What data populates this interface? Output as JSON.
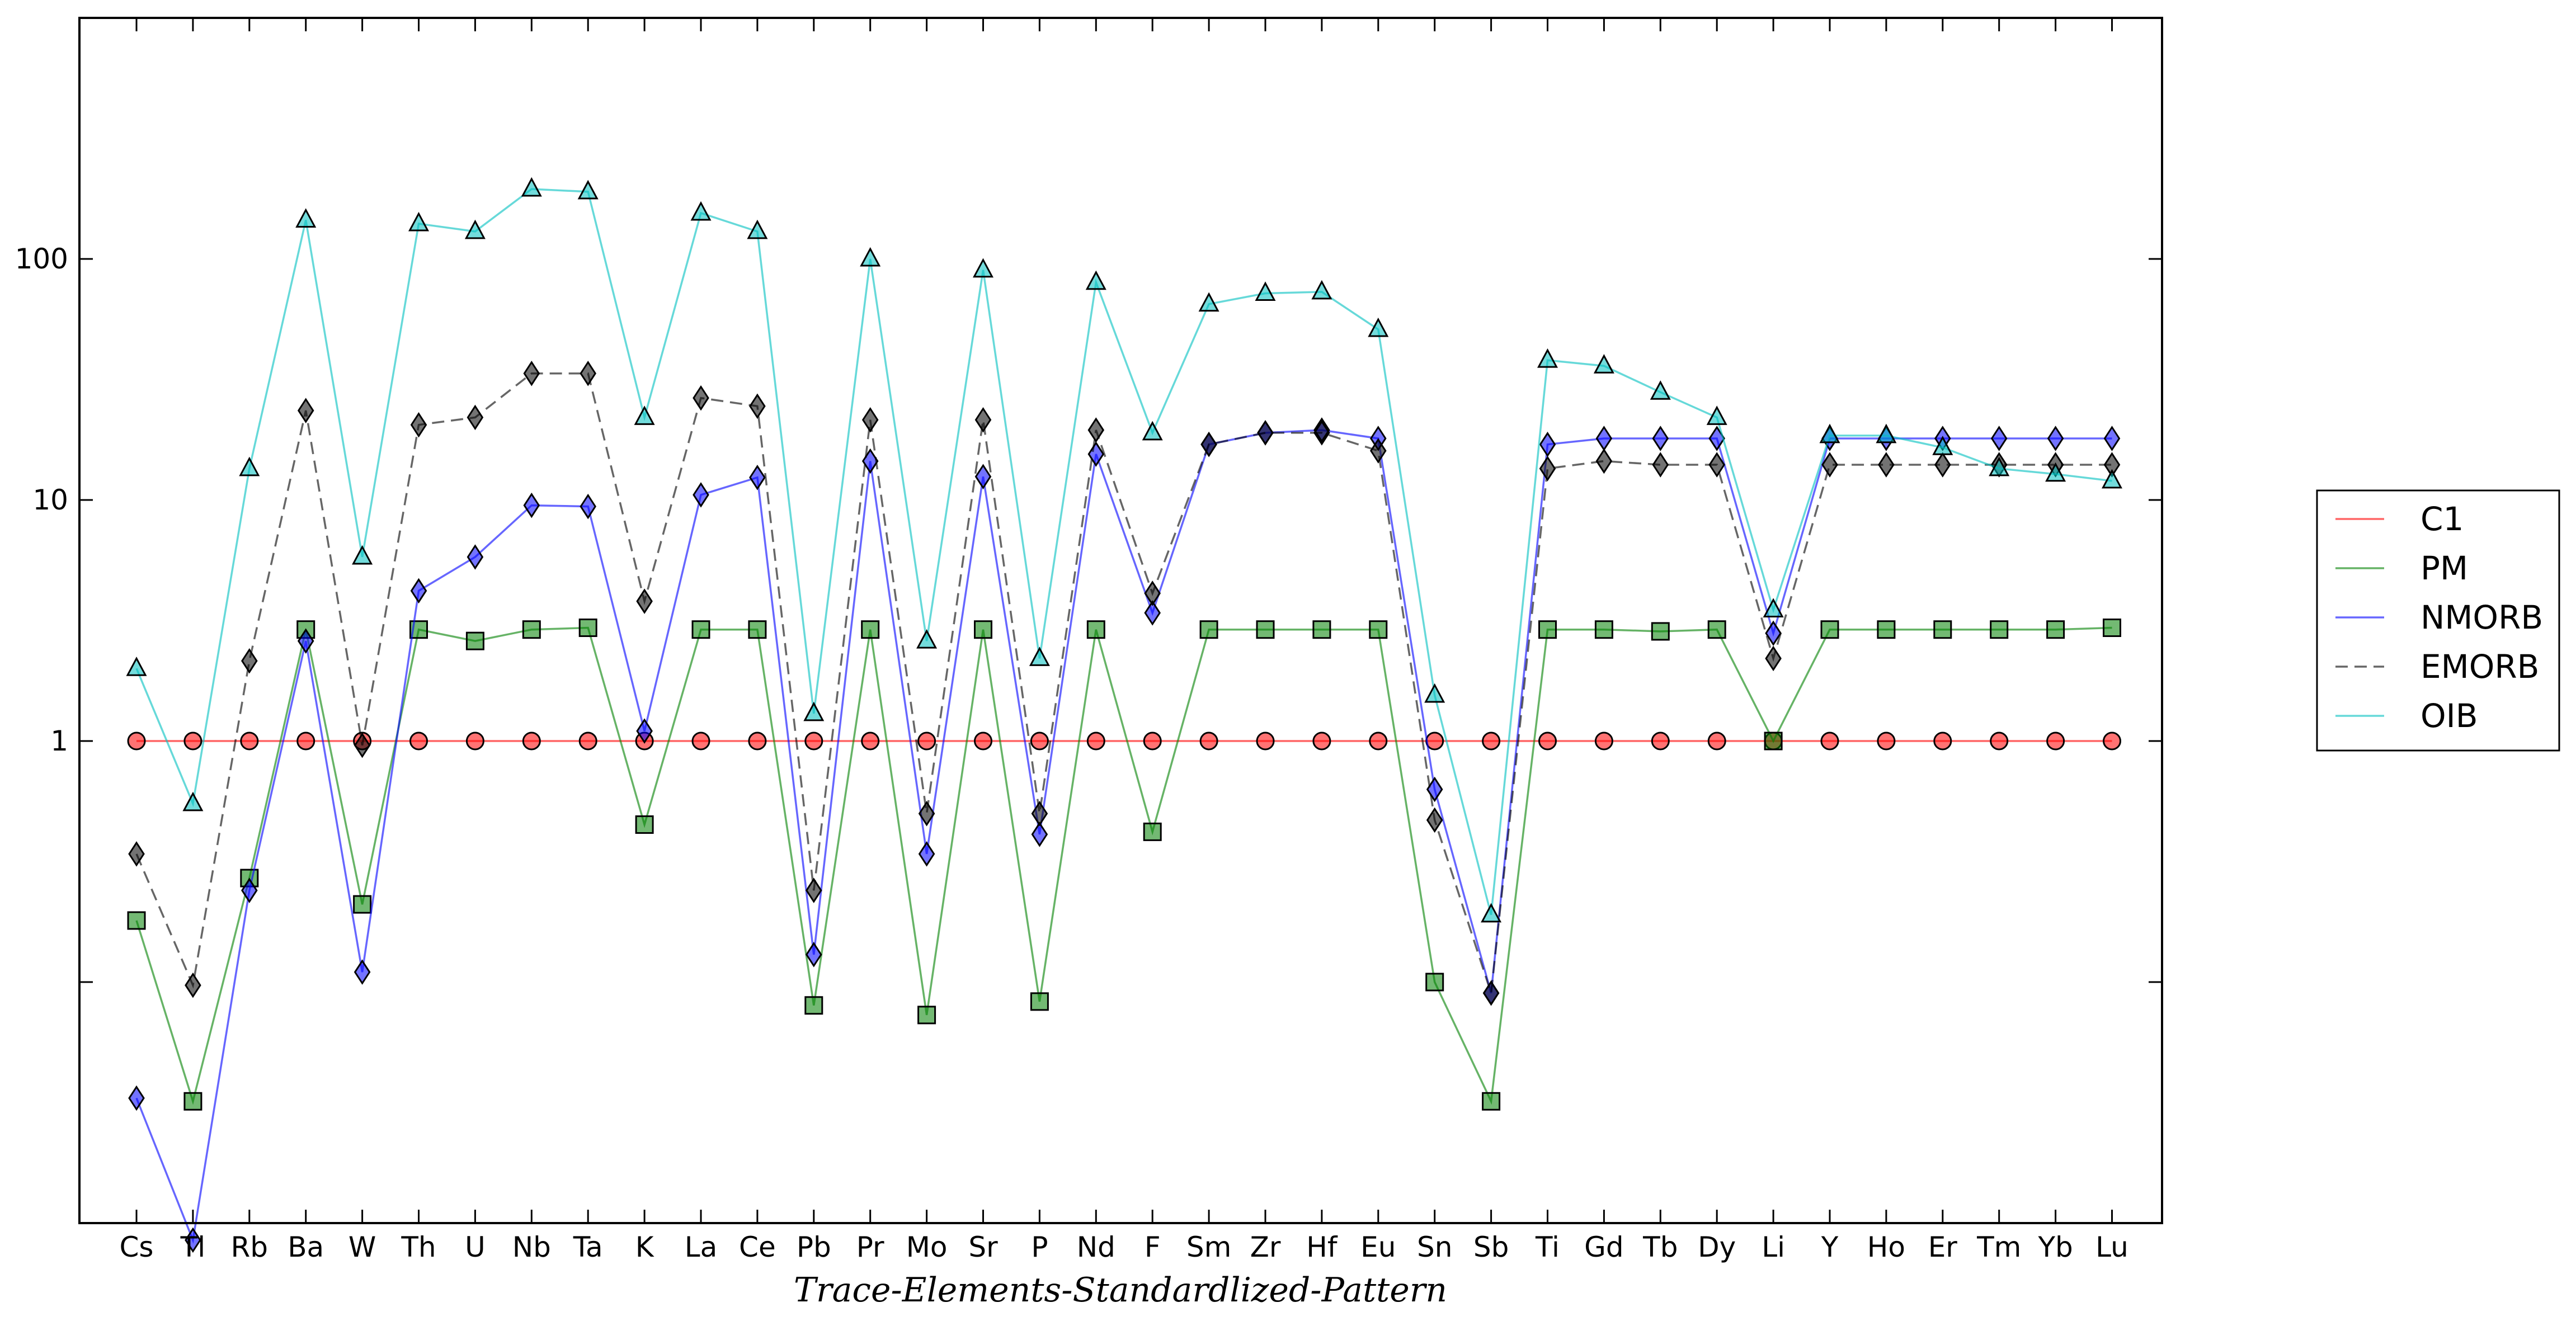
{
  "chart_data": {
    "type": "line",
    "xlabel": "Trace-Elements-Standardlized-Pattern",
    "ylabel": "",
    "yscale": "log",
    "ylim": [
      0.01,
      1000
    ],
    "yticks": [
      {
        "value": 1,
        "label": "1"
      },
      {
        "value": 10,
        "label": "10"
      },
      {
        "value": 100,
        "label": "100"
      },
      {
        "value": 0.1,
        "label": ""
      }
    ],
    "grid": false,
    "legend_position": "outside right",
    "categories": [
      "Cs",
      "Tl",
      "Rb",
      "Ba",
      "W",
      "Th",
      "U",
      "Nb",
      "Ta",
      "K",
      "La",
      "Ce",
      "Pb",
      "Pr",
      "Mo",
      "Sr",
      "P",
      "Nd",
      "F",
      "Sm",
      "Zr",
      "Hf",
      "Eu",
      "Sn",
      "Sb",
      "Ti",
      "Gd",
      "Tb",
      "Dy",
      "Li",
      "Y",
      "Ho",
      "Er",
      "Tm",
      "Yb",
      "Lu"
    ],
    "series": [
      {
        "name": "C1",
        "color": "#ff0000",
        "marker": "circle",
        "dash": "solid",
        "values": [
          1,
          1,
          1,
          1,
          1,
          1,
          1,
          1,
          1,
          1,
          1,
          1,
          1,
          1,
          1,
          1,
          1,
          1,
          1,
          1,
          1,
          1,
          1,
          1,
          1,
          1,
          1,
          1,
          1,
          1,
          1,
          1,
          1,
          1,
          1,
          1
        ]
      },
      {
        "name": "PM",
        "color": "#008000",
        "marker": "square",
        "dash": "solid",
        "values": [
          0.18,
          0.032,
          0.27,
          2.9,
          0.21,
          2.9,
          2.6,
          2.9,
          2.95,
          0.45,
          2.9,
          2.9,
          0.08,
          2.9,
          0.073,
          2.9,
          0.083,
          2.9,
          0.42,
          2.9,
          2.9,
          2.9,
          2.9,
          0.1,
          0.032,
          2.9,
          2.9,
          2.85,
          2.9,
          1.0,
          2.9,
          2.9,
          2.9,
          2.9,
          2.9,
          2.95
        ]
      },
      {
        "name": "NMORB",
        "color": "#0000ff",
        "marker": "diamond",
        "dash": "solid",
        "values": [
          0.033,
          0.0085,
          0.24,
          2.6,
          0.11,
          4.2,
          5.8,
          9.5,
          9.4,
          1.1,
          10.5,
          12.4,
          0.13,
          14.5,
          0.34,
          12.5,
          0.41,
          15.5,
          3.4,
          17.0,
          19.0,
          19.5,
          18.0,
          0.63,
          0.09,
          17.0,
          18.0,
          18.0,
          18.0,
          2.8,
          18.0,
          18.0,
          18.0,
          18.0,
          18.0,
          18.0
        ]
      },
      {
        "name": "EMORB",
        "color": "#000000",
        "marker": "diamond",
        "dash": "dashed",
        "values": [
          0.34,
          0.097,
          2.15,
          23.5,
          0.96,
          20.5,
          22.0,
          33.5,
          33.5,
          3.8,
          26.5,
          24.5,
          0.24,
          21.5,
          0.5,
          21.5,
          0.5,
          19.5,
          4.1,
          17.0,
          19.0,
          19.0,
          16.0,
          0.47,
          0.09,
          13.5,
          14.5,
          14.0,
          14.0,
          2.2,
          14.0,
          14.0,
          14.0,
          14.0,
          14.0,
          14.0
        ]
      },
      {
        "name": "OIB",
        "color": "#00bfbf",
        "marker": "triangle",
        "dash": "solid",
        "values": [
          2.0,
          0.55,
          13.5,
          145,
          5.8,
          140,
          130,
          195,
          190,
          22.0,
          155,
          130,
          1.3,
          100,
          2.6,
          90,
          2.2,
          80,
          19.0,
          65,
          72,
          73,
          51,
          1.55,
          0.19,
          38,
          36,
          28,
          22,
          3.5,
          18.5,
          18.5,
          16.5,
          13.5,
          12.8,
          12.0
        ]
      }
    ]
  }
}
